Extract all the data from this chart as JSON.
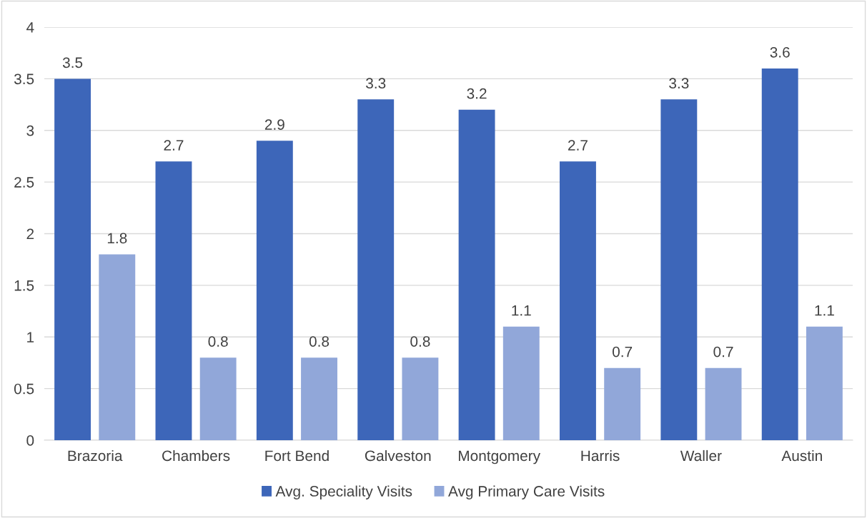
{
  "chart_data": {
    "type": "bar",
    "categories": [
      "Brazoria",
      "Chambers",
      "Fort Bend",
      "Galveston",
      "Montgomery",
      "Harris",
      "Waller",
      "Austin"
    ],
    "series": [
      {
        "name": "Avg. Speciality Visits",
        "color": "#3d66b9",
        "values": [
          3.5,
          2.7,
          2.9,
          3.3,
          3.2,
          2.7,
          3.3,
          3.6
        ]
      },
      {
        "name": "Avg Primary Care Visits",
        "color": "#91a7d9",
        "values": [
          1.8,
          0.8,
          0.8,
          0.8,
          1.1,
          0.7,
          0.7,
          1.1
        ]
      }
    ],
    "ylim": [
      0,
      4
    ],
    "yticks": [
      0,
      {
        "value": 0.5,
        "label": "0.5"
      },
      1,
      {
        "value": 1.5,
        "label": "1.5"
      },
      2,
      {
        "value": 2.5,
        "label": "2.5"
      },
      3,
      {
        "value": 3.5,
        "label": "3.5"
      },
      4
    ],
    "grid": "y",
    "legend": "bottom",
    "data_labels": true
  }
}
